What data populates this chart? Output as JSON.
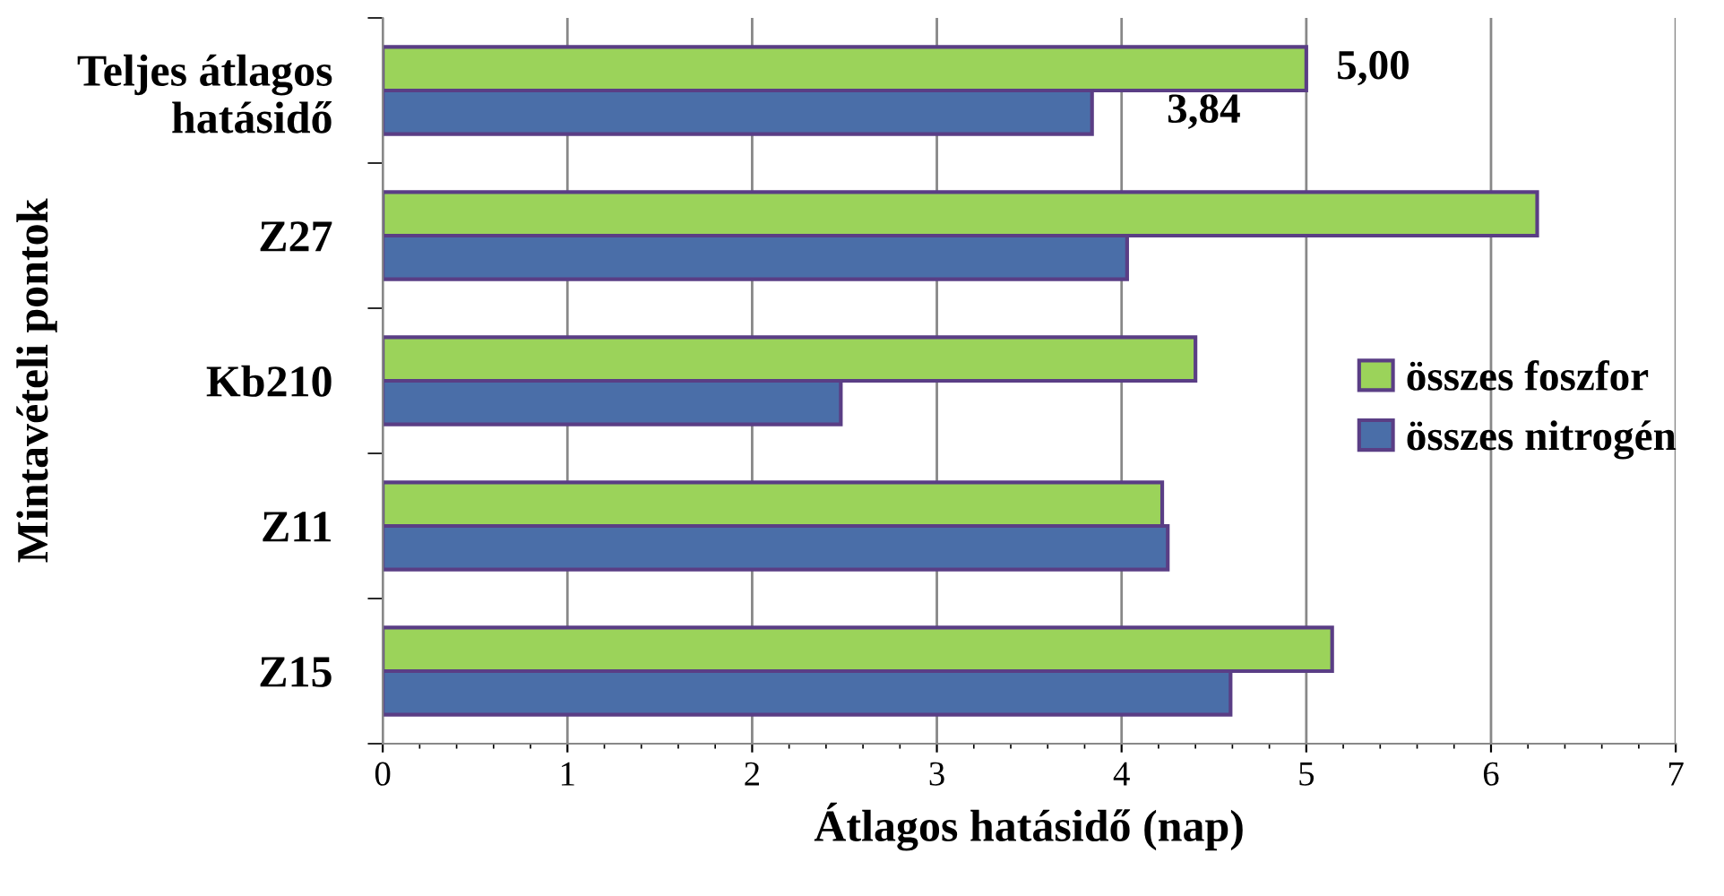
{
  "chart_data": {
    "type": "bar",
    "orientation": "horizontal",
    "xlabel": "Átlagos hatásidő (nap)",
    "ylabel": "Mintavételi pontok",
    "categories": [
      "Teljes átlagos\nhatásidő",
      "Z27",
      "Kb210",
      "Z11",
      "Z15"
    ],
    "series": [
      {
        "name": "összes foszfor",
        "color": "#9bd35a",
        "values": [
          5.0,
          6.25,
          4.4,
          4.22,
          5.14
        ],
        "value_labels": [
          "5,00",
          null,
          null,
          null,
          null
        ]
      },
      {
        "name": "összes nitrogén",
        "color": "#4a6ea8",
        "values": [
          3.84,
          4.03,
          2.48,
          4.25,
          4.59
        ],
        "value_labels": [
          "3,84",
          null,
          null,
          null,
          null
        ]
      }
    ],
    "xlim": [
      0,
      7
    ],
    "xticks": [
      0,
      1,
      2,
      3,
      4,
      5,
      6,
      7
    ],
    "grid": "x",
    "legend": "right"
  }
}
